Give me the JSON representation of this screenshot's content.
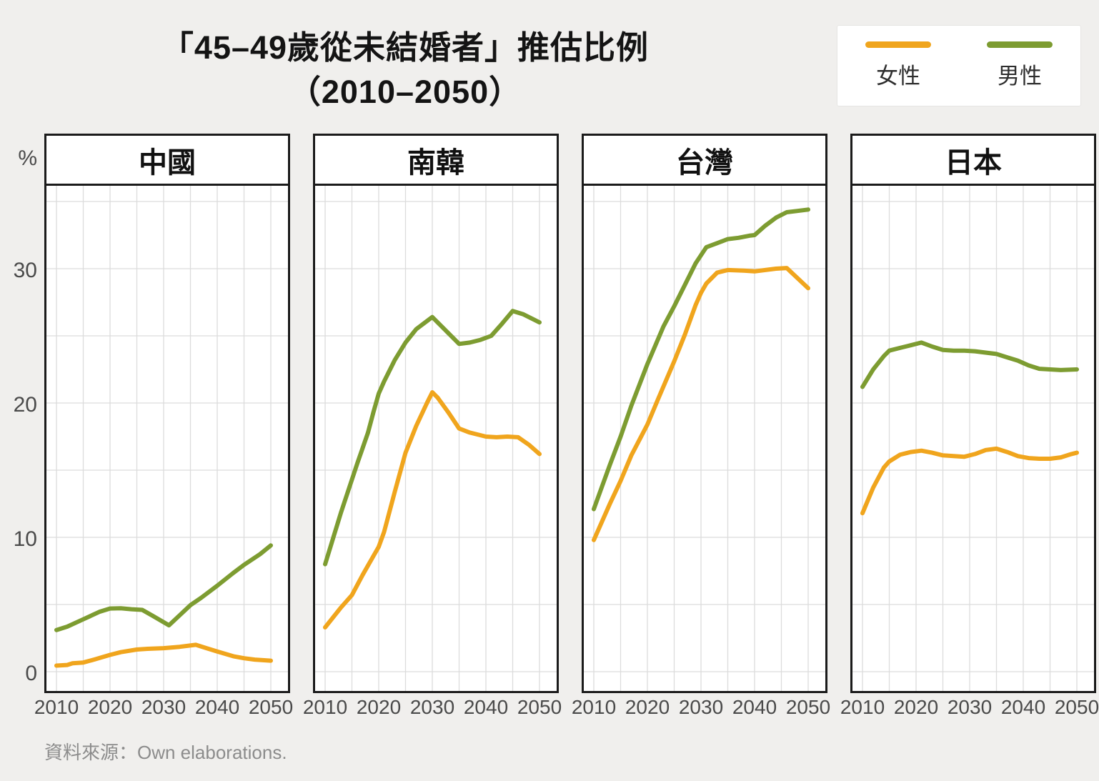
{
  "title": {
    "line1": "「45–49歲從未結婚者」推估比例",
    "line2": "（2010–2050）"
  },
  "legend": {
    "items": [
      {
        "key": "female",
        "label": "女性",
        "color": "#F0A51D"
      },
      {
        "key": "male",
        "label": "男性",
        "color": "#7D9C31"
      }
    ]
  },
  "footer": {
    "text": "資料來源：Own elaborations."
  },
  "chart_data": {
    "type": "line",
    "title": "「45–49歲從未結婚者」推估比例（2010–2050）",
    "ylabel": "%",
    "xlabel": "",
    "grid": true,
    "legend_position": "top-right",
    "x_axis": {
      "range": [
        2010,
        2050
      ],
      "ticks": [
        2010,
        2020,
        2030,
        2040,
        2050
      ],
      "grid_step": 5
    },
    "y_axis": {
      "unit": "%",
      "tick_labels": [
        "30",
        "20",
        "10",
        "0"
      ],
      "ticks": [
        30,
        20,
        10,
        0
      ],
      "grid_values": [
        0,
        5,
        10,
        15,
        20,
        25,
        30,
        35
      ],
      "range": [
        0,
        36
      ]
    },
    "panels": [
      {
        "title": "中國",
        "series": [
          {
            "key": "female",
            "name": "女性",
            "color": "#F0A51D",
            "points": [
              [
                2010,
                0.45
              ],
              [
                2012,
                0.5
              ],
              [
                2013,
                0.62
              ],
              [
                2015,
                0.68
              ],
              [
                2017,
                0.9
              ],
              [
                2020,
                1.25
              ],
              [
                2022,
                1.45
              ],
              [
                2025,
                1.65
              ],
              [
                2027,
                1.7
              ],
              [
                2030,
                1.75
              ],
              [
                2033,
                1.85
              ],
              [
                2036,
                2.0
              ],
              [
                2038,
                1.75
              ],
              [
                2040,
                1.5
              ],
              [
                2043,
                1.15
              ],
              [
                2045,
                1.0
              ],
              [
                2047,
                0.9
              ],
              [
                2050,
                0.82
              ]
            ]
          },
          {
            "key": "male",
            "name": "男性",
            "color": "#7D9C31",
            "points": [
              [
                2010,
                3.1
              ],
              [
                2012,
                3.35
              ],
              [
                2015,
                3.9
              ],
              [
                2018,
                4.45
              ],
              [
                2020,
                4.7
              ],
              [
                2022,
                4.72
              ],
              [
                2024,
                4.65
              ],
              [
                2026,
                4.6
              ],
              [
                2028,
                4.15
              ],
              [
                2031,
                3.45
              ],
              [
                2033,
                4.2
              ],
              [
                2035,
                4.95
              ],
              [
                2037,
                5.5
              ],
              [
                2040,
                6.4
              ],
              [
                2043,
                7.35
              ],
              [
                2045,
                7.95
              ],
              [
                2048,
                8.75
              ],
              [
                2050,
                9.4
              ]
            ]
          }
        ]
      },
      {
        "title": "南韓",
        "series": [
          {
            "key": "female",
            "name": "女性",
            "color": "#F0A51D",
            "points": [
              [
                2010,
                3.3
              ],
              [
                2013,
                4.8
              ],
              [
                2015,
                5.7
              ],
              [
                2017,
                7.2
              ],
              [
                2019,
                8.6
              ],
              [
                2020,
                9.3
              ],
              [
                2021,
                10.4
              ],
              [
                2023,
                13.4
              ],
              [
                2025,
                16.3
              ],
              [
                2027,
                18.3
              ],
              [
                2029,
                20.0
              ],
              [
                2030,
                20.8
              ],
              [
                2031,
                20.4
              ],
              [
                2033,
                19.3
              ],
              [
                2035,
                18.1
              ],
              [
                2037,
                17.8
              ],
              [
                2040,
                17.5
              ],
              [
                2042,
                17.45
              ],
              [
                2044,
                17.5
              ],
              [
                2046,
                17.45
              ],
              [
                2048,
                16.9
              ],
              [
                2050,
                16.2
              ]
            ]
          },
          {
            "key": "male",
            "name": "男性",
            "color": "#7D9C31",
            "points": [
              [
                2010,
                8.0
              ],
              [
                2013,
                11.9
              ],
              [
                2016,
                15.5
              ],
              [
                2018,
                17.8
              ],
              [
                2019,
                19.3
              ],
              [
                2020,
                20.7
              ],
              [
                2021,
                21.6
              ],
              [
                2023,
                23.2
              ],
              [
                2025,
                24.5
              ],
              [
                2027,
                25.5
              ],
              [
                2029,
                26.1
              ],
              [
                2030,
                26.4
              ],
              [
                2032,
                25.6
              ],
              [
                2034,
                24.8
              ],
              [
                2035,
                24.4
              ],
              [
                2037,
                24.5
              ],
              [
                2039,
                24.7
              ],
              [
                2041,
                25.0
              ],
              [
                2043,
                25.9
              ],
              [
                2045,
                26.85
              ],
              [
                2047,
                26.6
              ],
              [
                2050,
                26.0
              ]
            ]
          }
        ]
      },
      {
        "title": "台灣",
        "series": [
          {
            "key": "female",
            "name": "女性",
            "color": "#F0A51D",
            "points": [
              [
                2010,
                9.8
              ],
              [
                2013,
                12.5
              ],
              [
                2015,
                14.2
              ],
              [
                2017,
                16.1
              ],
              [
                2020,
                18.4
              ],
              [
                2022,
                20.3
              ],
              [
                2025,
                23.1
              ],
              [
                2027,
                25.1
              ],
              [
                2029,
                27.3
              ],
              [
                2030,
                28.2
              ],
              [
                2031,
                28.9
              ],
              [
                2033,
                29.7
              ],
              [
                2035,
                29.9
              ],
              [
                2038,
                29.85
              ],
              [
                2040,
                29.8
              ],
              [
                2042,
                29.9
              ],
              [
                2044,
                30.0
              ],
              [
                2046,
                30.05
              ],
              [
                2048,
                29.3
              ],
              [
                2050,
                28.55
              ]
            ]
          },
          {
            "key": "male",
            "name": "男性",
            "color": "#7D9C31",
            "points": [
              [
                2010,
                12.1
              ],
              [
                2013,
                15.4
              ],
              [
                2015,
                17.5
              ],
              [
                2017,
                19.8
              ],
              [
                2020,
                22.9
              ],
              [
                2023,
                25.7
              ],
              [
                2025,
                27.2
              ],
              [
                2027,
                28.8
              ],
              [
                2029,
                30.4
              ],
              [
                2031,
                31.6
              ],
              [
                2033,
                31.9
              ],
              [
                2035,
                32.2
              ],
              [
                2037,
                32.3
              ],
              [
                2039,
                32.45
              ],
              [
                2040,
                32.5
              ],
              [
                2042,
                33.2
              ],
              [
                2044,
                33.8
              ],
              [
                2046,
                34.2
              ],
              [
                2048,
                34.3
              ],
              [
                2050,
                34.4
              ]
            ]
          }
        ]
      },
      {
        "title": "日本",
        "series": [
          {
            "key": "female",
            "name": "女性",
            "color": "#F0A51D",
            "points": [
              [
                2010,
                11.8
              ],
              [
                2012,
                13.7
              ],
              [
                2014,
                15.2
              ],
              [
                2015,
                15.65
              ],
              [
                2017,
                16.15
              ],
              [
                2019,
                16.35
              ],
              [
                2021,
                16.45
              ],
              [
                2023,
                16.3
              ],
              [
                2025,
                16.1
              ],
              [
                2027,
                16.05
              ],
              [
                2029,
                16.0
              ],
              [
                2031,
                16.2
              ],
              [
                2033,
                16.5
              ],
              [
                2035,
                16.6
              ],
              [
                2037,
                16.35
              ],
              [
                2039,
                16.05
              ],
              [
                2041,
                15.9
              ],
              [
                2043,
                15.85
              ],
              [
                2045,
                15.85
              ],
              [
                2047,
                15.95
              ],
              [
                2049,
                16.2
              ],
              [
                2050,
                16.3
              ]
            ]
          },
          {
            "key": "male",
            "name": "男性",
            "color": "#7D9C31",
            "points": [
              [
                2010,
                21.2
              ],
              [
                2012,
                22.5
              ],
              [
                2014,
                23.5
              ],
              [
                2015,
                23.9
              ],
              [
                2017,
                24.1
              ],
              [
                2019,
                24.3
              ],
              [
                2021,
                24.5
              ],
              [
                2023,
                24.2
              ],
              [
                2025,
                23.95
              ],
              [
                2027,
                23.9
              ],
              [
                2029,
                23.9
              ],
              [
                2031,
                23.85
              ],
              [
                2033,
                23.75
              ],
              [
                2035,
                23.65
              ],
              [
                2037,
                23.4
              ],
              [
                2039,
                23.15
              ],
              [
                2041,
                22.8
              ],
              [
                2043,
                22.55
              ],
              [
                2045,
                22.5
              ],
              [
                2047,
                22.45
              ],
              [
                2050,
                22.5
              ]
            ]
          }
        ]
      }
    ]
  }
}
